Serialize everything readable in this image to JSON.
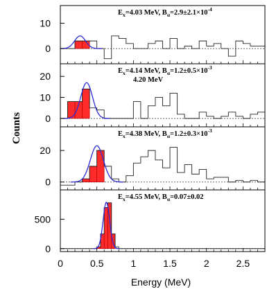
{
  "figure": {
    "ylabel": "Counts",
    "xlabel": "Energy (MeV)",
    "x_ticks": [
      "0",
      "0.5",
      "1",
      "1.5",
      "2",
      "2.5"
    ]
  },
  "chart_data": [
    {
      "type": "histogram",
      "annotation": {
        "E_main": "E",
        "E_sub": "x",
        "E_value": "=4.03 MeV, B",
        "B_sub": "α",
        "B_value": "=2.9±2.1×10",
        "B_exp": "-4",
        "extra": ""
      },
      "xlim": [
        0,
        2.8
      ],
      "ylim": [
        -6,
        17
      ],
      "y_ticks": [
        0,
        10
      ],
      "bin_edges": [
        0.0,
        0.1,
        0.2,
        0.3,
        0.4,
        0.5,
        0.6,
        0.7,
        0.8,
        0.9,
        1.0,
        1.1,
        1.2,
        1.3,
        1.4,
        1.5,
        1.6,
        1.7,
        1.8,
        1.9,
        2.0,
        2.1,
        2.2,
        2.3,
        2.4,
        2.5,
        2.6,
        2.7,
        2.8
      ],
      "counts": [
        0,
        0,
        3,
        3,
        3,
        0,
        -4,
        5,
        4,
        2,
        0,
        0,
        2,
        3,
        0,
        4,
        0,
        1,
        0,
        3,
        1,
        2,
        0,
        -3,
        3,
        2,
        1,
        1
      ],
      "highlight_range": [
        0.1,
        0.4
      ],
      "fit": {
        "mean": 0.27,
        "sigma": 0.075,
        "amplitude": 5.0
      }
    },
    {
      "type": "histogram",
      "annotation": {
        "E_main": "E",
        "E_sub": "x",
        "E_value": "=4.14 MeV, B",
        "B_sub": "α",
        "B_value": "=1.2±0.5×10",
        "B_exp": "-3",
        "extra": "4.20 MeV"
      },
      "xlim": [
        0,
        2.8
      ],
      "ylim": [
        -4,
        26
      ],
      "y_ticks": [
        0,
        10,
        20
      ],
      "bin_edges": [
        0.0,
        0.1,
        0.2,
        0.3,
        0.4,
        0.5,
        0.6,
        0.7,
        0.8,
        0.9,
        1.0,
        1.1,
        1.2,
        1.3,
        1.4,
        1.5,
        1.6,
        1.7,
        1.8,
        1.9,
        2.0,
        2.1,
        2.2,
        2.3,
        2.4,
        2.5,
        2.6,
        2.7,
        2.8
      ],
      "counts": [
        0,
        8,
        8,
        14,
        5,
        4,
        0,
        0,
        0,
        0,
        8,
        0,
        6,
        10,
        6,
        12,
        2,
        0,
        0,
        3,
        1,
        0,
        1,
        3,
        1,
        0,
        2,
        3
      ],
      "highlight_range": [
        0.1,
        0.4
      ],
      "fit": {
        "mean": 0.36,
        "sigma": 0.08,
        "amplitude": 17.0
      }
    },
    {
      "type": "histogram",
      "annotation": {
        "E_main": "E",
        "E_sub": "x",
        "E_value": "=4.38 MeV, B",
        "B_sub": "α",
        "B_value": "=1.2±0.3×10",
        "B_exp": "-3",
        "extra": ""
      },
      "xlim": [
        0,
        2.8
      ],
      "ylim": [
        -5,
        35
      ],
      "y_ticks": [
        0,
        20
      ],
      "bin_edges": [
        0.0,
        0.1,
        0.2,
        0.3,
        0.4,
        0.5,
        0.6,
        0.7,
        0.8,
        0.9,
        1.0,
        1.1,
        1.2,
        1.3,
        1.4,
        1.5,
        1.6,
        1.7,
        1.8,
        1.9,
        2.0,
        2.1,
        2.2,
        2.3,
        2.4,
        2.5,
        2.6,
        2.7,
        2.8
      ],
      "counts": [
        -2,
        -2,
        0,
        2,
        10,
        20,
        10,
        2,
        0,
        4,
        12,
        16,
        20,
        14,
        9,
        22,
        6,
        11,
        5,
        8,
        2,
        3,
        3,
        0,
        1,
        0,
        1,
        0
      ],
      "highlight_range": [
        0.3,
        0.6
      ],
      "fit": {
        "mean": 0.5,
        "sigma": 0.09,
        "amplitude": 23.0
      }
    },
    {
      "type": "histogram",
      "annotation": {
        "E_main": "E",
        "E_sub": "x",
        "E_value": "=4.55 MeV, B",
        "B_sub": "α",
        "B_value": "=0.07±0.02",
        "B_exp": "",
        "extra": ""
      },
      "xlim": [
        0,
        2.8
      ],
      "ylim": [
        -50,
        1000
      ],
      "y_ticks": [
        0,
        500
      ],
      "bin_edges": [
        0.0,
        0.05,
        0.1,
        0.15,
        0.2,
        0.25,
        0.3,
        0.35,
        0.4,
        0.45,
        0.5,
        0.55,
        0.6,
        0.65,
        0.7,
        0.75,
        0.8,
        0.85,
        0.9,
        0.95,
        1.0,
        1.05,
        1.1,
        1.15,
        1.2,
        1.25,
        1.3,
        1.35,
        1.4,
        1.45,
        1.5,
        1.55,
        1.6,
        1.65,
        1.7,
        1.75,
        1.8,
        1.85,
        1.9,
        1.95,
        2.0,
        2.05,
        2.1,
        2.15,
        2.2,
        2.25,
        2.3,
        2.35,
        2.4,
        2.45,
        2.5,
        2.55,
        2.6,
        2.65,
        2.7,
        2.75,
        2.8
      ],
      "counts": [
        0,
        0,
        0,
        0,
        0,
        0,
        0,
        0,
        0,
        0,
        30,
        250,
        700,
        780,
        250,
        30,
        0,
        0,
        0,
        0,
        0,
        0,
        0,
        0,
        0,
        0,
        0,
        0,
        0,
        0,
        0,
        0,
        0,
        0,
        0,
        0,
        0,
        0,
        0,
        0,
        0,
        0,
        0,
        0,
        0,
        0,
        0,
        0,
        0,
        0,
        0,
        0,
        0,
        0,
        0,
        0
      ],
      "highlight_range": [
        0.5,
        0.75
      ],
      "fit": {
        "mean": 0.63,
        "sigma": 0.045,
        "amplitude": 790.0
      }
    }
  ],
  "colors": {
    "highlight_fill": "#ff2a2a",
    "highlight_stroke": "#aa0000",
    "fit_line": "#2b2bd6",
    "histogram_line": "#222222",
    "frame": "#000000",
    "zero_line": "#666666"
  }
}
